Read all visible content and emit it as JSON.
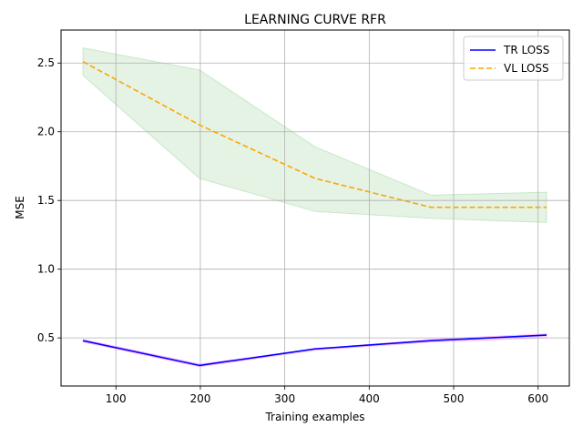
{
  "chart_data": {
    "type": "line",
    "title": "LEARNING CURVE RFR",
    "xlabel": "Training examples",
    "ylabel": "MSE",
    "xlim": [
      35,
      637
    ],
    "ylim": [
      0.15,
      2.74
    ],
    "xticks": [
      100,
      200,
      300,
      400,
      500,
      600
    ],
    "yticks": [
      0.5,
      1.0,
      1.5,
      2.0,
      2.5
    ],
    "xtick_labels": [
      "100",
      "200",
      "300",
      "400",
      "500",
      "600"
    ],
    "ytick_labels": [
      "0.5",
      "1.0",
      "1.5",
      "2.0",
      "2.5"
    ],
    "grid": true,
    "legend_position": "top-right",
    "x": [
      61,
      199,
      336,
      473,
      610
    ],
    "series": [
      {
        "name": "TR LOSS",
        "color": "#0000ff",
        "style": "solid",
        "values": [
          0.48,
          0.3,
          0.42,
          0.48,
          0.52
        ],
        "band_upper": [
          0.49,
          0.31,
          0.42,
          0.49,
          0.53
        ],
        "band_lower": [
          0.47,
          0.29,
          0.41,
          0.47,
          0.5
        ],
        "band_color": "#ff00ff"
      },
      {
        "name": "VL LOSS",
        "color": "#ffa500",
        "style": "dashed",
        "values": [
          2.51,
          2.05,
          1.66,
          1.45,
          1.45
        ],
        "band_upper": [
          2.61,
          2.45,
          1.89,
          1.54,
          1.56
        ],
        "band_lower": [
          2.41,
          1.66,
          1.42,
          1.37,
          1.34
        ],
        "band_color": "#2ca02c"
      }
    ]
  }
}
